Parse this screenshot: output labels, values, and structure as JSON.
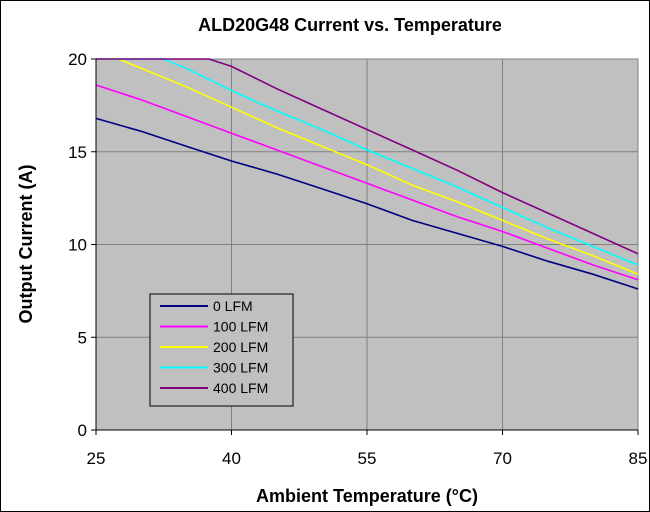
{
  "chart_data": {
    "type": "line",
    "title": "ALD20G48 Current vs. Temperature",
    "xlabel": "Ambient Temperature (°C)",
    "ylabel": "Output Current (A)",
    "xlim": [
      25,
      85
    ],
    "ylim": [
      0,
      20
    ],
    "xticks": [
      25,
      40,
      55,
      70,
      85
    ],
    "yticks": [
      0,
      5,
      10,
      15,
      20
    ],
    "grid": true,
    "legend_position": "lower-left",
    "plot_background": "#c0c0c0",
    "series": [
      {
        "name": "0 LFM",
        "color": "#000080",
        "x": [
          25,
          30,
          35,
          40,
          45,
          50,
          55,
          60,
          65,
          70,
          75,
          80,
          85
        ],
        "y": [
          16.8,
          16.1,
          15.3,
          14.5,
          13.8,
          13.0,
          12.2,
          11.3,
          10.6,
          9.9,
          9.1,
          8.4,
          7.6
        ]
      },
      {
        "name": "100 LFM",
        "color": "#ff00ff",
        "x": [
          25,
          30,
          35,
          40,
          45,
          50,
          55,
          60,
          65,
          70,
          75,
          80,
          85
        ],
        "y": [
          18.6,
          17.8,
          16.9,
          16.0,
          15.1,
          14.2,
          13.3,
          12.4,
          11.5,
          10.7,
          9.8,
          8.9,
          8.1
        ]
      },
      {
        "name": "200 LFM",
        "color": "#ffff00",
        "x": [
          25,
          27.5,
          30,
          35,
          40,
          45,
          50,
          55,
          60,
          65,
          70,
          75,
          80,
          85
        ],
        "y": [
          20,
          20,
          19.5,
          18.5,
          17.4,
          16.3,
          15.3,
          14.3,
          13.2,
          12.3,
          11.3,
          10.3,
          9.4,
          8.4
        ]
      },
      {
        "name": "300 LFM",
        "color": "#00ffff",
        "x": [
          25,
          32.5,
          35,
          40,
          45,
          50,
          55,
          60,
          65,
          70,
          75,
          80,
          85
        ],
        "y": [
          20,
          20,
          19.5,
          18.3,
          17.2,
          16.2,
          15.1,
          14.1,
          13.1,
          12.0,
          10.9,
          9.9,
          8.9
        ]
      },
      {
        "name": "400 LFM",
        "color": "#800080",
        "x": [
          25,
          37.5,
          40,
          45,
          50,
          55,
          60,
          65,
          70,
          75,
          80,
          85
        ],
        "y": [
          20,
          20,
          19.6,
          18.4,
          17.3,
          16.2,
          15.1,
          14.0,
          12.8,
          11.7,
          10.6,
          9.5
        ]
      }
    ]
  }
}
